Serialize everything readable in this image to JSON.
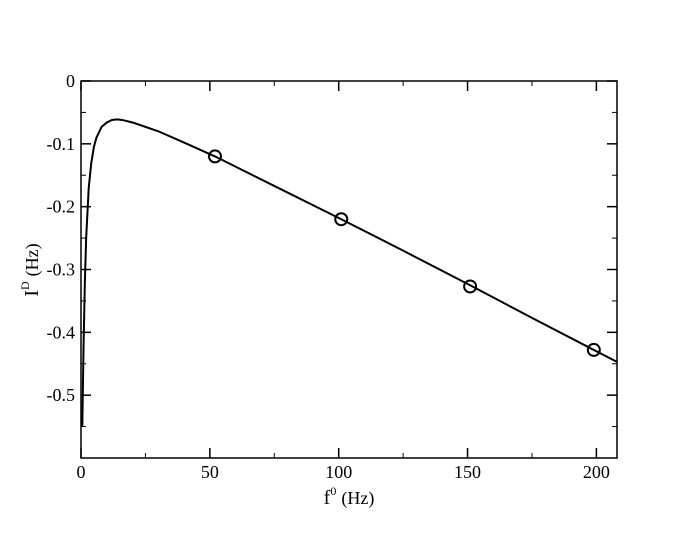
{
  "chart_data": {
    "type": "line",
    "xlabel": "f",
    "xlabel_sup": "0",
    "xlabel_unit": "(Hz)",
    "ylabel": "I",
    "ylabel_sup": "D",
    "ylabel_unit": "(Hz)",
    "xlim": [
      0,
      208
    ],
    "ylim": [
      -0.6,
      0
    ],
    "xticks": [
      0,
      50,
      100,
      150,
      200
    ],
    "yticks": [
      0,
      -0.1,
      -0.2,
      -0.3,
      -0.4,
      -0.5
    ],
    "series": [
      {
        "type": "line",
        "color": "#000000",
        "x": [
          0.5,
          1,
          1.5,
          2,
          3,
          4,
          5,
          6,
          8,
          10,
          12,
          14,
          16,
          20,
          25,
          30,
          40,
          52,
          75,
          101,
          125,
          151,
          175,
          199,
          208
        ],
        "values": [
          -0.55,
          -0.42,
          -0.32,
          -0.25,
          -0.17,
          -0.13,
          -0.105,
          -0.09,
          -0.073,
          -0.066,
          -0.062,
          -0.061,
          -0.062,
          -0.066,
          -0.073,
          -0.08,
          -0.098,
          -0.12,
          -0.167,
          -0.22,
          -0.27,
          -0.325,
          -0.377,
          -0.428,
          -0.447
        ]
      },
      {
        "type": "scatter",
        "color": "#000000",
        "x": [
          52,
          101,
          151,
          199
        ],
        "values": [
          -0.12,
          -0.22,
          -0.327,
          -0.428
        ]
      }
    ]
  }
}
